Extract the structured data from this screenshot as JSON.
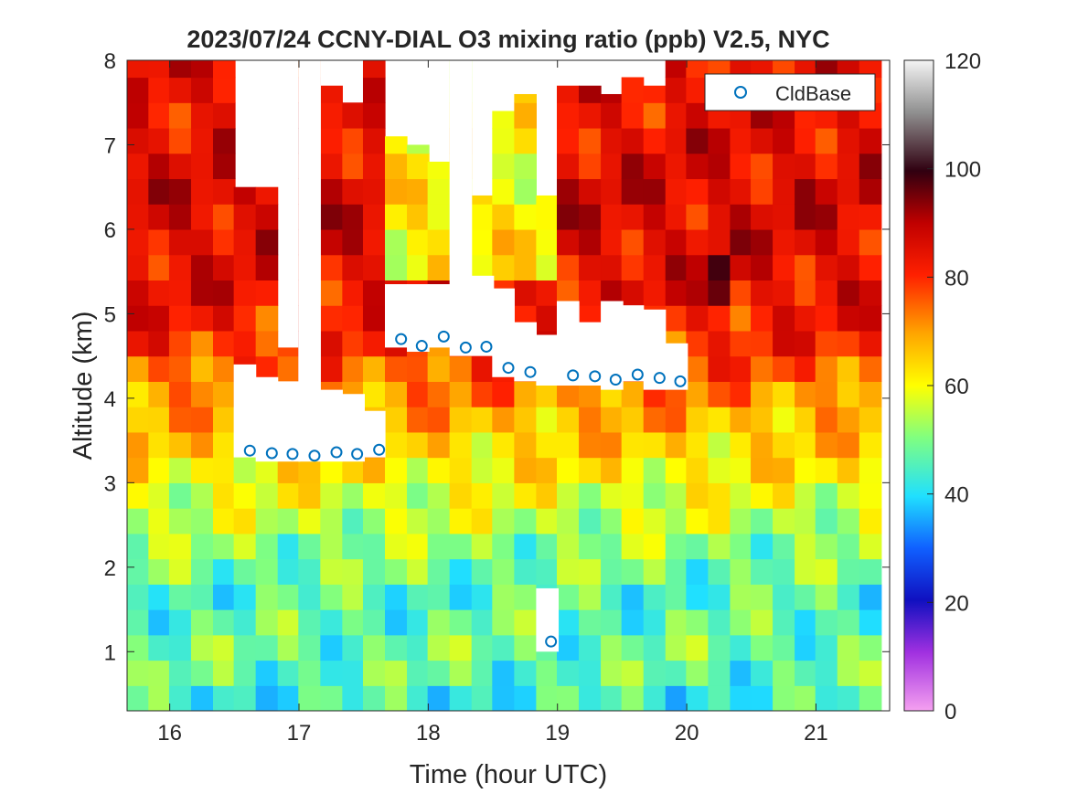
{
  "chart_data": {
    "type": "heatmap",
    "title": "2023/07/24 CCNY-DIAL O3 mixing ratio (ppb) V2.5, NYC",
    "xlabel": "Time (hour UTC)",
    "ylabel": "Altitude (km)",
    "xlim": [
      15.67,
      21.57
    ],
    "ylim": [
      0.3,
      8
    ],
    "xticks": [
      "16",
      "17",
      "18",
      "19",
      "20",
      "21"
    ],
    "yticks": [
      "1",
      "2",
      "3",
      "4",
      "5",
      "6",
      "7",
      "8"
    ],
    "colorbar": {
      "min": 0,
      "max": 120,
      "ticks": [
        "0",
        "20",
        "40",
        "60",
        "80",
        "100",
        "120"
      ],
      "colormap": "jet-like: magenta at 0, blue at 20, cyan at 40, yellow at 60, red at 80, dark red at 100, light grey at 120"
    },
    "legend": {
      "entries": [
        "CldBase"
      ],
      "location": "top-right",
      "marker": "open circle",
      "color": "#0072bd"
    },
    "profile_times": [
      15.75,
      15.92,
      16.08,
      16.25,
      16.42,
      16.58,
      16.75,
      16.92,
      17.08,
      17.25,
      17.42,
      17.58,
      17.75,
      17.92,
      18.08,
      18.25,
      18.42,
      18.58,
      18.75,
      18.92,
      19.08,
      19.25,
      19.42,
      19.58,
      19.75,
      19.92,
      20.08,
      20.25,
      20.42,
      20.58,
      20.75,
      20.92,
      21.08,
      21.25,
      21.42
    ],
    "profile_top_km": [
      8,
      8,
      8,
      8,
      8,
      6.5,
      6.5,
      4.6,
      8,
      7.7,
      7.5,
      8,
      7.1,
      7.0,
      6.8,
      8,
      6.4,
      7.4,
      7.6,
      6.4,
      7.7,
      7.7,
      7.6,
      7.8,
      7.7,
      8,
      8,
      8,
      8,
      8,
      8,
      8,
      8,
      8,
      8
    ],
    "gaps_km": [
      {
        "t": 16.58,
        "from": 3.3,
        "to": 4.4
      },
      {
        "t": 16.75,
        "from": 3.25,
        "to": 4.25
      },
      {
        "t": 16.92,
        "from": 3.25,
        "to": 4.2
      },
      {
        "t": 17.08,
        "from": 3.25,
        "to": 8
      },
      {
        "t": 17.25,
        "from": 3.25,
        "to": 4.1
      },
      {
        "t": 17.42,
        "from": 3.25,
        "to": 4.05
      },
      {
        "t": 17.58,
        "from": 3.3,
        "to": 3.85
      },
      {
        "t": 17.75,
        "from": 4.6,
        "to": 5.35
      },
      {
        "t": 17.92,
        "from": 4.55,
        "to": 5.35
      },
      {
        "t": 18.08,
        "from": 4.6,
        "to": 5.35
      },
      {
        "t": 18.25,
        "from": 4.5,
        "to": 8
      },
      {
        "t": 18.42,
        "from": 4.5,
        "to": 5.45
      },
      {
        "t": 18.58,
        "from": 4.25,
        "to": 5.3
      },
      {
        "t": 18.75,
        "from": 4.2,
        "to": 4.9
      },
      {
        "t": 18.92,
        "from": 4.15,
        "to": 4.75
      },
      {
        "t": 18.92,
        "from": 1.0,
        "to": 1.75
      },
      {
        "t": 19.08,
        "from": 4.15,
        "to": 5.15
      },
      {
        "t": 19.25,
        "from": 4.15,
        "to": 4.9
      },
      {
        "t": 19.42,
        "from": 4.1,
        "to": 5.15
      },
      {
        "t": 19.58,
        "from": 4.2,
        "to": 5.1
      },
      {
        "t": 19.75,
        "from": 4.1,
        "to": 5.05
      },
      {
        "t": 19.92,
        "from": 4.1,
        "to": 4.65
      }
    ],
    "cloud_base": {
      "name": "CldBase",
      "x": [
        16.62,
        16.79,
        16.95,
        17.12,
        17.29,
        17.45,
        17.62,
        17.79,
        17.95,
        18.12,
        18.29,
        18.45,
        18.62,
        18.79,
        18.95,
        19.12,
        19.29,
        19.45,
        19.62,
        19.79,
        19.95
      ],
      "y": [
        3.38,
        3.35,
        3.34,
        3.32,
        3.36,
        3.34,
        3.39,
        4.7,
        4.62,
        4.73,
        4.6,
        4.61,
        4.36,
        4.31,
        1.12,
        4.27,
        4.26,
        4.22,
        4.28,
        4.24,
        4.2
      ]
    },
    "o3_profiles_ppb": {
      "altitude_km": [
        0.3,
        0.6,
        0.9,
        1.2,
        1.5,
        1.8,
        2.1,
        2.4,
        2.7,
        3.0,
        3.3,
        3.6,
        3.9,
        4.2,
        4.5,
        4.8,
        5.1,
        5.4,
        5.7,
        6.0,
        6.3,
        6.6,
        6.9,
        7.2,
        7.5,
        7.8
      ],
      "typical_values": [
        44,
        47,
        48,
        47,
        46,
        49,
        51,
        55,
        58,
        62,
        65,
        68,
        72,
        76,
        80,
        82,
        84,
        85,
        86,
        86,
        86,
        85,
        85,
        84,
        84,
        84
      ],
      "notes": "Mostly 40-55 ppb near the surface, 60-75 ppb at 2.5-4 km, 75-95 ppb above 4 km; lower 40-60 ppb values in the upper layers near 17.8-18.9 h"
    }
  }
}
